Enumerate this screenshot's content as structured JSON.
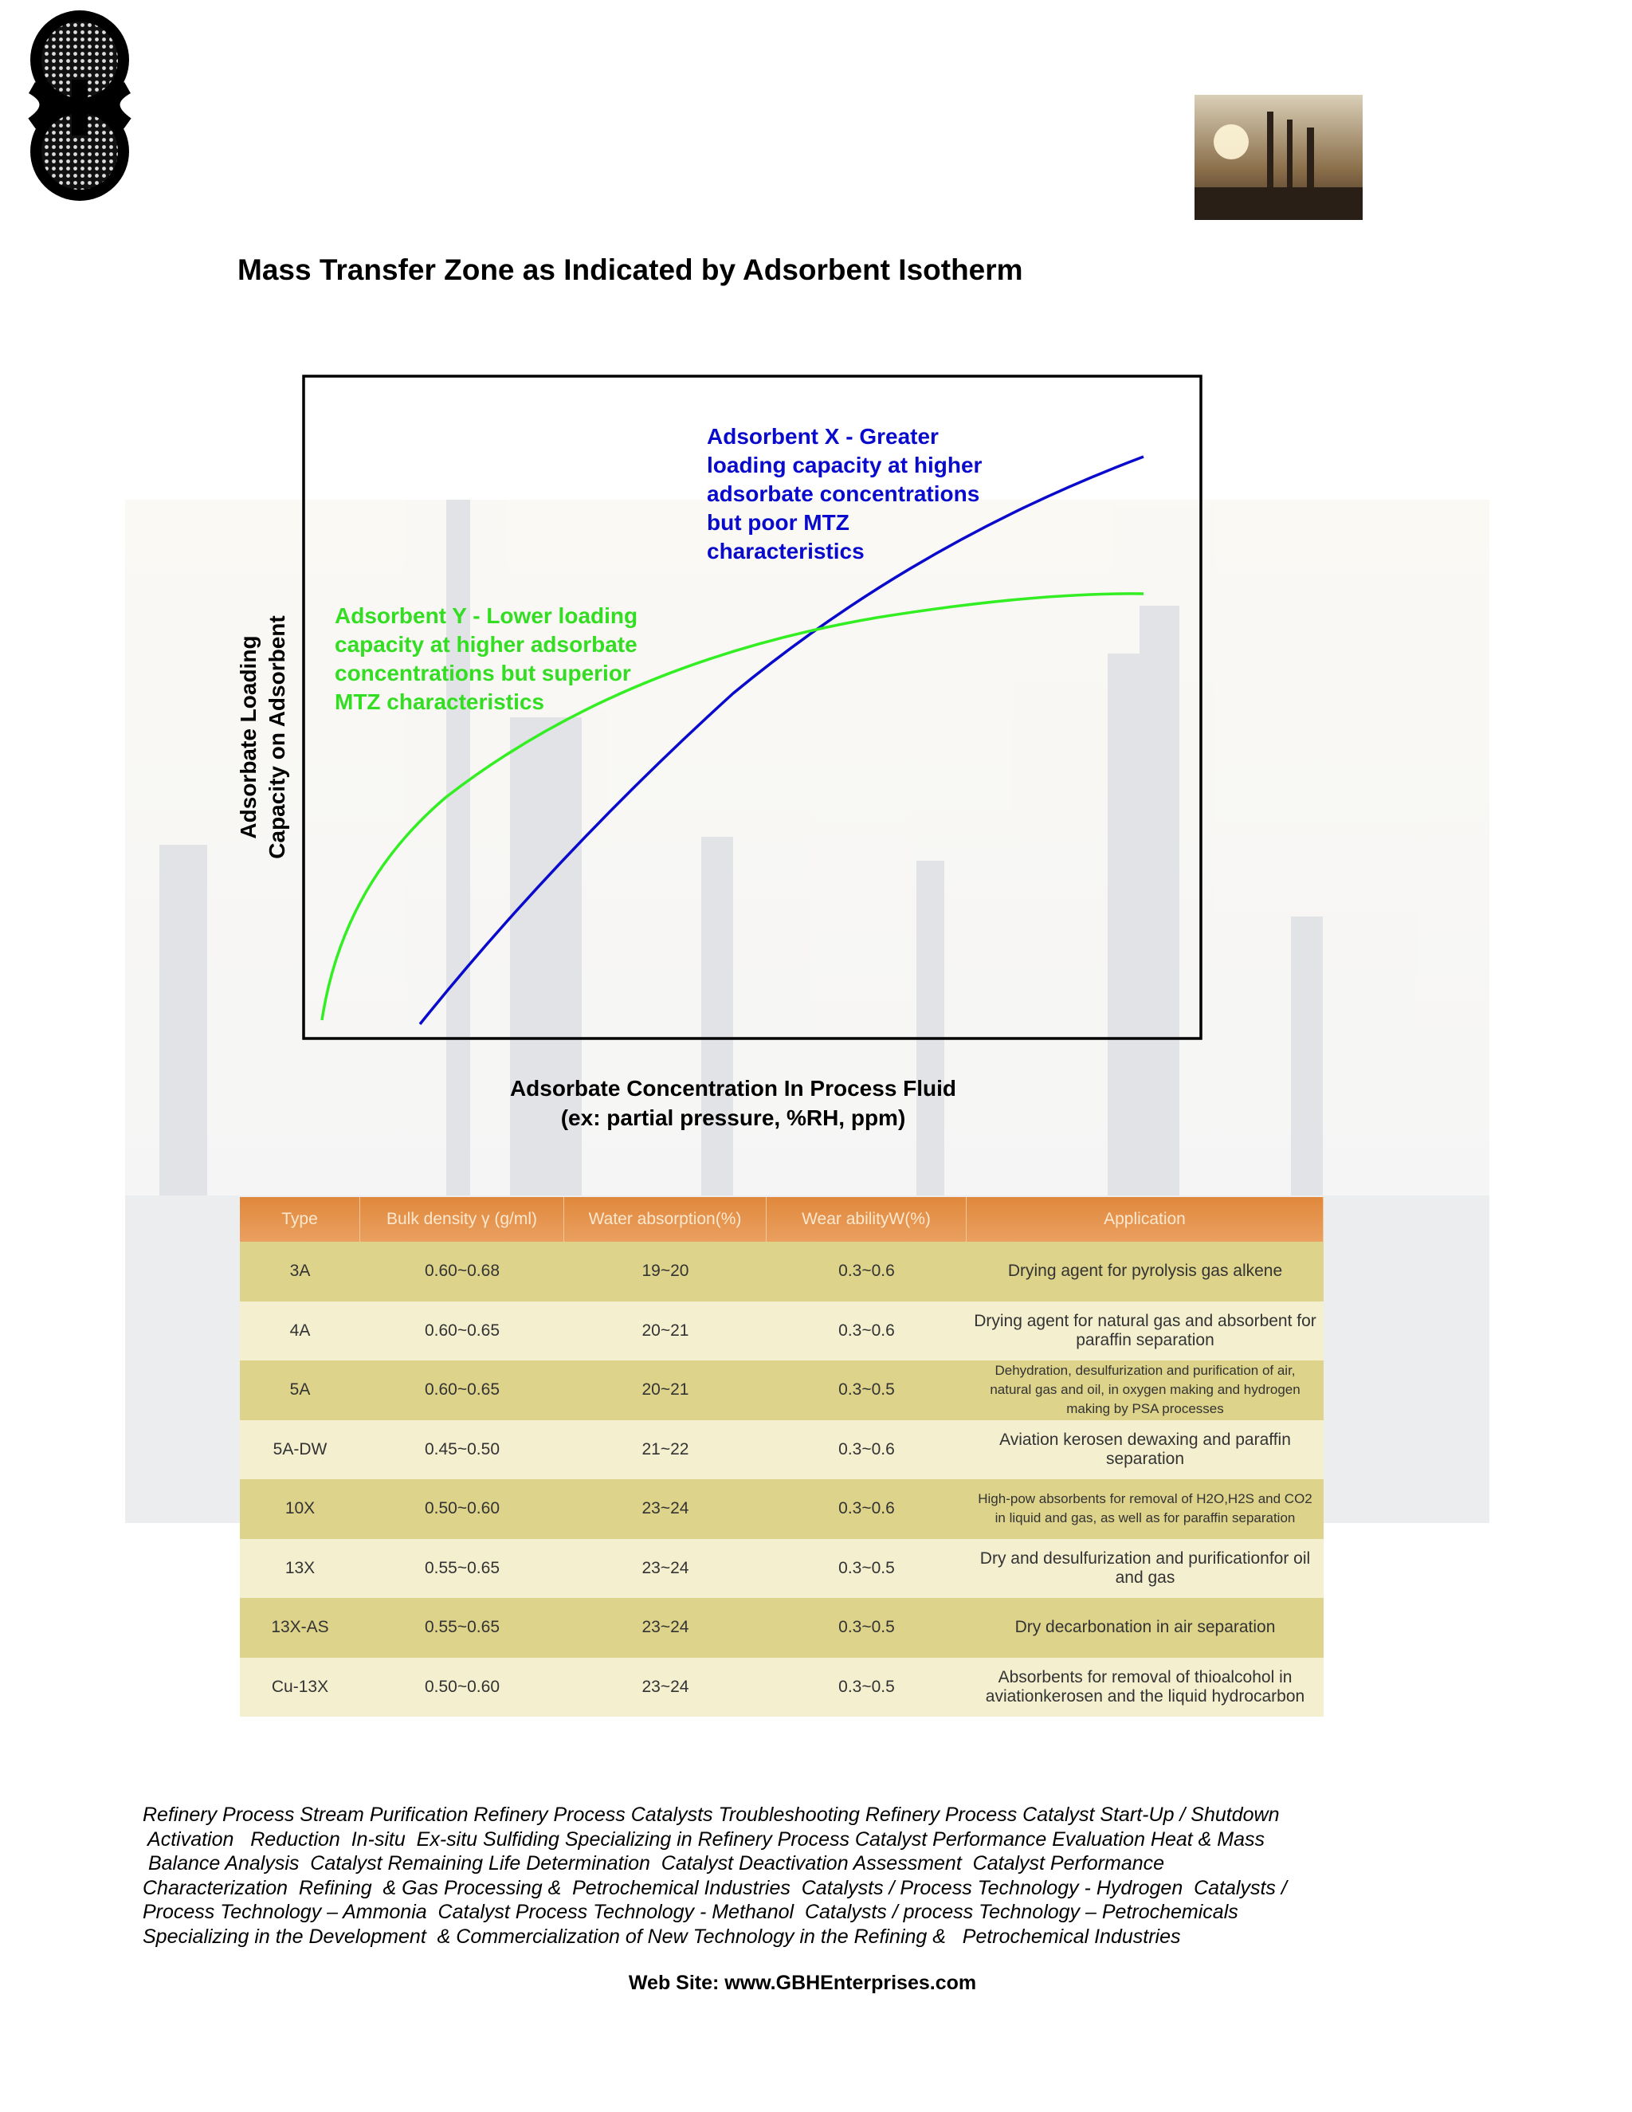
{
  "title": "Mass Transfer Zone as Indicated by Adsorbent Isotherm",
  "diagram": {
    "y_axis_label": [
      "Adsorbate Loading",
      "Capacity on Adsorbent"
    ],
    "x_axis_label": [
      "Adsorbate Concentration In Process Fluid",
      "(ex: partial pressure, %RH, ppm)"
    ],
    "annotations": [
      {
        "name": "adsorbent-x",
        "lines": [
          "Adsorbent X - Greater",
          "loading capacity at higher",
          "adsorbate concentrations",
          "but poor MTZ",
          "characteristics"
        ]
      },
      {
        "name": "adsorbent-y",
        "lines": [
          "Adsorbent Y - Lower loading",
          "capacity at higher adsorbate",
          "concentrations but superior",
          "MTZ characteristics"
        ]
      }
    ]
  },
  "table": {
    "header": [
      "Type",
      "Bulk density γ (g/ml)",
      "Water absorption(%)",
      "Wear abilityW(%)",
      "Application"
    ],
    "rows": [
      [
        "3A",
        "0.60~0.68",
        "19~20",
        "0.3~0.6",
        "Drying agent for pyrolysis gas alkene"
      ],
      [
        "4A",
        "0.60~0.65",
        "20~21",
        "0.3~0.6",
        "Drying agent for natural gas and absorbent for paraffin separation"
      ],
      [
        "5A",
        "0.60~0.65",
        "20~21",
        "0.3~0.5",
        "Dehydration, desulfurization and purification of air, natural gas and oil, in oxygen making and hydrogen making by PSA processes"
      ],
      [
        "5A-DW",
        "0.45~0.50",
        "21~22",
        "0.3~0.6",
        "Aviation kerosen dewaxing and paraffin separation"
      ],
      [
        "10X",
        "0.50~0.60",
        "23~24",
        "0.3~0.6",
        "High-pow absorbents for removal of H2O,H2S and CO2 in liquid and gas, as well as for paraffin separation"
      ],
      [
        "13X",
        "0.55~0.65",
        "23~24",
        "0.3~0.5",
        "Dry and desulfurization and purificationfor oil and gas"
      ],
      [
        "13X-AS",
        "0.55~0.65",
        "23~24",
        "0.3~0.5",
        "Dry decarbonation in air separation"
      ],
      [
        "Cu-13X",
        "0.50~0.60",
        "23~24",
        "0.3~0.5",
        "Absorbents for removal of thioalcohol in aviationkerosen and the liquid hydrocarbon"
      ]
    ]
  },
  "footer": {
    "lines": [
      "Refinery Process Stream Purification Refinery Process Catalysts Troubleshooting Refinery Process Catalyst Start-Up / Shutdown",
      " Activation   Reduction  In-situ  Ex-situ Sulfiding Specializing in Refinery Process Catalyst Performance Evaluation Heat & Mass",
      " Balance Analysis  Catalyst Remaining Life Determination  Catalyst Deactivation Assessment  Catalyst Performance",
      "Characterization  Refining  & Gas Processing &  Petrochemical Industries  Catalysts / Process Technology - Hydrogen  Catalysts /",
      "Process Technology – Ammonia  Catalyst Process Technology - Methanol  Catalysts / process Technology – Petrochemicals",
      "Specializing in the Development  & Commercialization of New Technology in the Refining &   Petrochemical Industries"
    ],
    "website": "Web Site: www.GBHEnterprises.com"
  }
}
